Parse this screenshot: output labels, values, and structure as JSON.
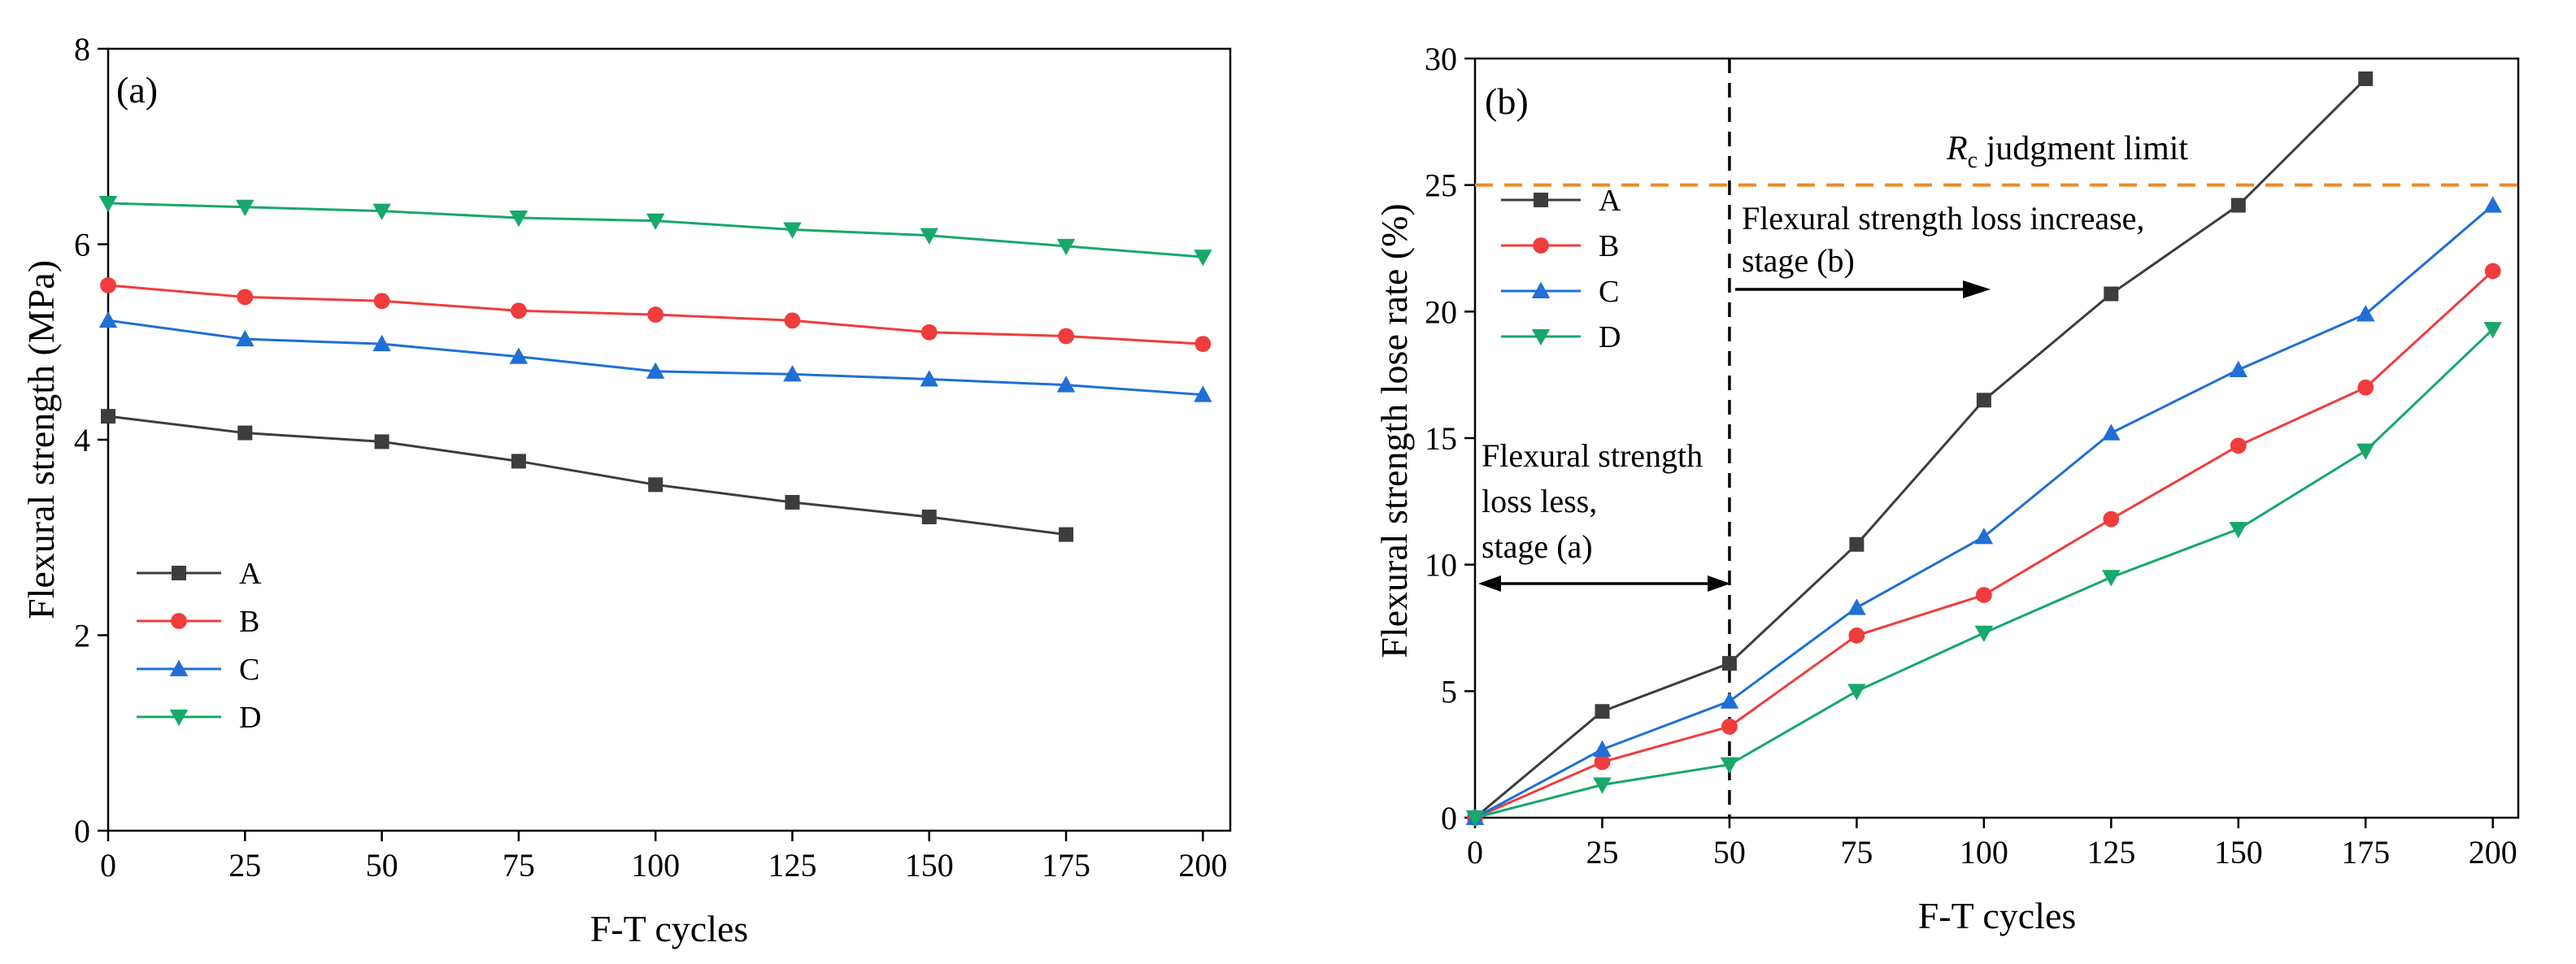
{
  "chart_data": [
    {
      "type": "line",
      "panel_label": "(a)",
      "xlabel": "F-T cycles",
      "ylabel": "Flexural strength (MPa)",
      "xlim": [
        0,
        205
      ],
      "ylim": [
        0,
        8
      ],
      "x_ticks": [
        0,
        25,
        50,
        75,
        100,
        125,
        150,
        175,
        200
      ],
      "y_ticks": [
        0,
        2,
        4,
        6,
        8
      ],
      "legend_position": "bottom-left",
      "series": [
        {
          "name": "A",
          "color": "#3d3d3d",
          "marker": "square",
          "x": [
            0,
            25,
            50,
            75,
            100,
            125,
            150,
            175
          ],
          "values": [
            4.24,
            4.07,
            3.98,
            3.78,
            3.54,
            3.36,
            3.21,
            3.03
          ]
        },
        {
          "name": "B",
          "color": "#f03c3c",
          "marker": "circle",
          "x": [
            0,
            25,
            50,
            75,
            100,
            125,
            150,
            175,
            200
          ],
          "values": [
            5.58,
            5.46,
            5.42,
            5.32,
            5.28,
            5.22,
            5.1,
            5.06,
            4.98
          ]
        },
        {
          "name": "C",
          "color": "#1f6fd6",
          "marker": "triangle-up",
          "x": [
            0,
            25,
            50,
            75,
            100,
            125,
            150,
            175,
            200
          ],
          "values": [
            5.22,
            5.03,
            4.98,
            4.85,
            4.7,
            4.67,
            4.62,
            4.56,
            4.46
          ]
        },
        {
          "name": "D",
          "color": "#17a86a",
          "marker": "triangle-down",
          "x": [
            0,
            25,
            50,
            75,
            100,
            125,
            150,
            175,
            200
          ],
          "values": [
            6.42,
            6.38,
            6.34,
            6.27,
            6.24,
            6.15,
            6.09,
            5.98,
            5.87
          ]
        }
      ]
    },
    {
      "type": "line",
      "panel_label": "(b)",
      "xlabel": "F-T cycles",
      "ylabel": "Flexural strength lose rate (%)",
      "xlim": [
        0,
        205
      ],
      "ylim": [
        0,
        30
      ],
      "x_ticks": [
        0,
        25,
        50,
        75,
        100,
        125,
        150,
        175,
        200
      ],
      "y_ticks": [
        0,
        5,
        10,
        15,
        20,
        25,
        30
      ],
      "legend_position": "top-left",
      "reference_line": {
        "y": 25,
        "color": "#f08a24",
        "label_italic": "R",
        "label_sub": "c",
        "label_text": " judgment limit"
      },
      "divider_x": 50,
      "annotations": {
        "stage_a_lines": [
          "Flexural strength",
          "loss less,",
          "stage (a)"
        ],
        "stage_b_lines": [
          "Flexural strength loss increase,",
          "stage (b)"
        ]
      },
      "series": [
        {
          "name": "A",
          "color": "#3d3d3d",
          "marker": "square",
          "x": [
            0,
            25,
            50,
            75,
            100,
            125,
            150,
            175
          ],
          "values": [
            0,
            4.2,
            6.1,
            10.8,
            16.5,
            20.7,
            24.2,
            29.2
          ]
        },
        {
          "name": "B",
          "color": "#f03c3c",
          "marker": "circle",
          "x": [
            0,
            25,
            50,
            75,
            100,
            125,
            150,
            175,
            200
          ],
          "values": [
            0,
            2.2,
            3.6,
            7.2,
            8.8,
            11.8,
            14.7,
            17.0,
            21.6
          ]
        },
        {
          "name": "C",
          "color": "#1f6fd6",
          "marker": "triangle-up",
          "x": [
            0,
            25,
            50,
            75,
            100,
            125,
            150,
            175,
            200
          ],
          "values": [
            0,
            2.7,
            4.6,
            8.3,
            11.1,
            15.2,
            17.7,
            19.9,
            24.2
          ]
        },
        {
          "name": "D",
          "color": "#17a86a",
          "marker": "triangle-down",
          "x": [
            0,
            25,
            50,
            75,
            100,
            125,
            150,
            175,
            200
          ],
          "values": [
            0,
            1.3,
            2.1,
            5.0,
            7.3,
            9.5,
            11.4,
            14.5,
            19.3
          ]
        }
      ]
    }
  ]
}
